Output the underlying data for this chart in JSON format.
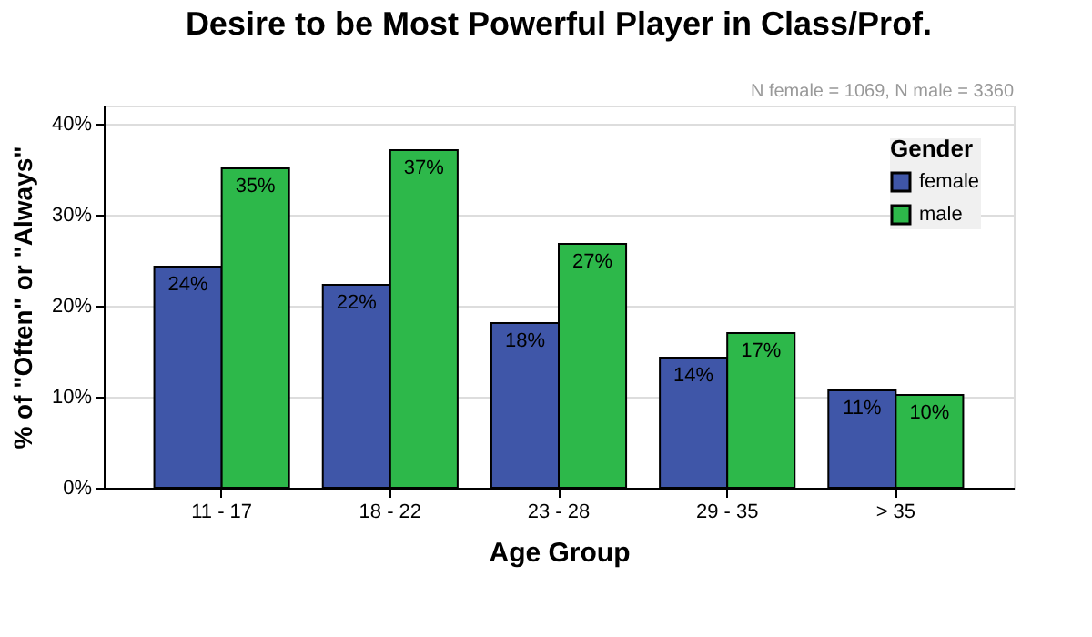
{
  "chart_data": {
    "type": "bar",
    "title": "Desire to be Most Powerful Player in Class/Prof.",
    "xlabel": "Age Group",
    "ylabel": "% of \"Often\" or \"Always\"",
    "legend_title": "Gender",
    "annotations": [
      "N female = 1069, N male = 3360"
    ],
    "categories": [
      "11 - 17",
      "18 - 22",
      "23 - 28",
      "29 - 35",
      "> 35"
    ],
    "series": [
      {
        "name": "female",
        "color": "#3f56a8",
        "values": [
          24.3,
          22.3,
          18.1,
          14.3,
          10.7
        ],
        "value_labels": [
          "24%",
          "22%",
          "18%",
          "14%",
          "11%"
        ]
      },
      {
        "name": "male",
        "color": "#2db84a",
        "values": [
          35.1,
          37.1,
          26.8,
          17.0,
          10.2
        ],
        "value_labels": [
          "35%",
          "37%",
          "27%",
          "17%",
          "10%"
        ]
      }
    ],
    "ylim": [
      0,
      42
    ],
    "yticks": [
      {
        "value": 0,
        "label": "0%"
      },
      {
        "value": 10,
        "label": "10%"
      },
      {
        "value": 20,
        "label": "20%"
      },
      {
        "value": 30,
        "label": "30%"
      },
      {
        "value": 40,
        "label": "40%"
      }
    ],
    "grid": "y",
    "legend": "top right"
  }
}
